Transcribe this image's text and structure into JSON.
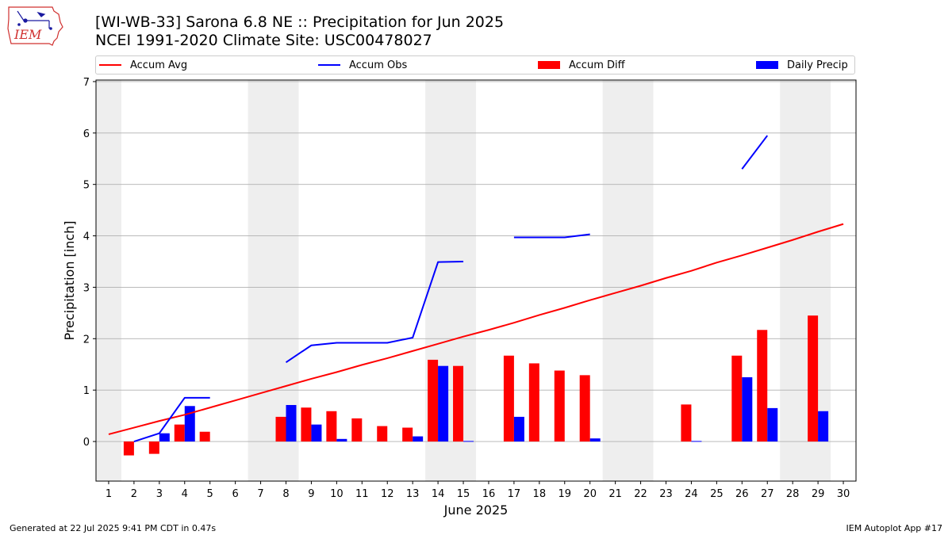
{
  "header": {
    "title_line1": "[WI-WB-33] Sarona 6.8 NE :: Precipitation for Jun 2025",
    "title_line2": "NCEI 1991-2020 Climate Site: USC00478027",
    "logo_text": "IEM"
  },
  "footer": {
    "generated": "Generated at 22 Jul 2025 9:41 PM CDT in 0.47s",
    "app": "IEM Autoplot App #17"
  },
  "colors": {
    "avg": "#ff0000",
    "obs": "#0000ff",
    "diff": "#ff0000",
    "daily": "#0000ff",
    "shade": "#eeeeee",
    "grid": "#b0b0b0"
  },
  "chart_data": {
    "type": "bar+line",
    "xlabel": "June 2025",
    "ylabel": "Precipitation [inch]",
    "ylim": [
      -0.77,
      7.03
    ],
    "yticks": [
      0,
      1,
      2,
      3,
      4,
      5,
      6,
      7
    ],
    "xlim": [
      0.5,
      30.5
    ],
    "x": [
      1,
      2,
      3,
      4,
      5,
      6,
      7,
      8,
      9,
      10,
      11,
      12,
      13,
      14,
      15,
      16,
      17,
      18,
      19,
      20,
      21,
      22,
      23,
      24,
      25,
      26,
      27,
      28,
      29,
      30
    ],
    "grid": "horizontal",
    "legend_position": "top",
    "weekend_shading": [
      [
        0.5,
        1.5
      ],
      [
        6.5,
        8.5
      ],
      [
        13.5,
        15.5
      ],
      [
        20.5,
        22.5
      ],
      [
        27.5,
        29.5
      ]
    ],
    "series": [
      {
        "name": "Accum Avg",
        "kind": "line",
        "values": [
          0.14,
          0.27,
          0.4,
          0.52,
          0.66,
          0.8,
          0.94,
          1.08,
          1.22,
          1.35,
          1.49,
          1.62,
          1.76,
          1.9,
          2.04,
          2.17,
          2.31,
          2.46,
          2.6,
          2.75,
          2.89,
          3.03,
          3.18,
          3.32,
          3.48,
          3.62,
          3.77,
          3.92,
          4.08,
          4.23
        ]
      },
      {
        "name": "Accum Obs",
        "kind": "line",
        "values": [
          null,
          0.0,
          0.16,
          0.85,
          0.85,
          null,
          null,
          1.54,
          1.87,
          1.92,
          1.92,
          1.92,
          2.02,
          3.49,
          3.5,
          null,
          3.97,
          3.97,
          3.97,
          4.03,
          null,
          null,
          null,
          null,
          null,
          5.3,
          5.95,
          null,
          null,
          null
        ]
      },
      {
        "name": "Accum Diff",
        "kind": "bar",
        "values": [
          null,
          -0.27,
          -0.24,
          0.33,
          0.19,
          null,
          null,
          0.48,
          0.66,
          0.59,
          0.45,
          0.3,
          0.27,
          1.59,
          1.47,
          null,
          1.67,
          1.52,
          1.38,
          1.29,
          null,
          null,
          null,
          0.72,
          null,
          1.67,
          2.17,
          null,
          2.45,
          null
        ]
      },
      {
        "name": "Daily Precip",
        "kind": "bar",
        "values": [
          null,
          null,
          0.16,
          0.69,
          null,
          null,
          null,
          0.71,
          0.33,
          0.05,
          null,
          null,
          0.1,
          1.47,
          0.01,
          null,
          0.48,
          null,
          null,
          0.06,
          null,
          null,
          null,
          0.01,
          null,
          1.25,
          0.65,
          null,
          0.59,
          null
        ]
      }
    ]
  }
}
